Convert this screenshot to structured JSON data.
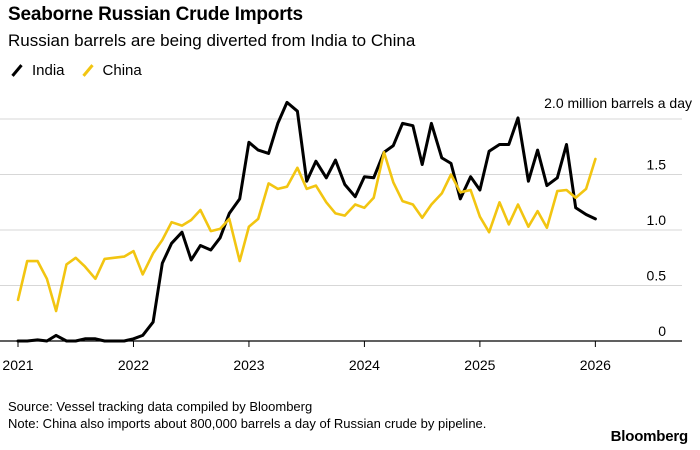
{
  "header": {
    "title": "Seaborne Russian Crude Imports",
    "subtitle": "Russian barrels are being diverted from India to China"
  },
  "footer": {
    "source": "Source: Vessel tracking data compiled by Bloomberg",
    "note": "Note: China also imports about 800,000 barrels a day of Russian crude by pipeline.",
    "brand": "Bloomberg"
  },
  "colors": {
    "india": "#000000",
    "china": "#f2c511",
    "grid": "#d7d7d7",
    "axis": "#000000"
  },
  "chart_data": {
    "type": "line",
    "title": "Seaborne Russian Crude Imports",
    "subtitle": "Russian barrels are being diverted from India to China",
    "units_label": "2.0 million barrels a day",
    "legend_position": "top-left",
    "grid": true,
    "xlim": [
      2021.0,
      2026.3
    ],
    "ylim": [
      0,
      2.0
    ],
    "x_ticks": [
      {
        "value": 2021,
        "label": "2021"
      },
      {
        "value": 2022,
        "label": "2022"
      },
      {
        "value": 2023,
        "label": "2023"
      },
      {
        "value": 2024,
        "label": "2024"
      },
      {
        "value": 2025,
        "label": "2025"
      },
      {
        "value": 2026,
        "label": "2026"
      }
    ],
    "y_ticks": [
      {
        "value": 0,
        "label": "0"
      },
      {
        "value": 0.5,
        "label": "0.5"
      },
      {
        "value": 1.0,
        "label": "1.0"
      },
      {
        "value": 1.5,
        "label": "1.5"
      },
      {
        "value": 2.0,
        "label": "2.0 million barrels a day"
      }
    ],
    "series": [
      {
        "name": "India",
        "color": "#000000",
        "x": [
          2021.0,
          2021.08,
          2021.17,
          2021.25,
          2021.33,
          2021.42,
          2021.5,
          2021.58,
          2021.67,
          2021.75,
          2021.83,
          2021.92,
          2022.0,
          2022.08,
          2022.17,
          2022.25,
          2022.33,
          2022.42,
          2022.5,
          2022.58,
          2022.67,
          2022.75,
          2022.83,
          2022.92,
          2023.0,
          2023.08,
          2023.17,
          2023.25,
          2023.33,
          2023.42,
          2023.5,
          2023.58,
          2023.67,
          2023.75,
          2023.83,
          2023.92,
          2024.0,
          2024.08,
          2024.17,
          2024.25,
          2024.33,
          2024.42,
          2024.5,
          2024.58,
          2024.67,
          2024.75,
          2024.83,
          2024.92,
          2025.0,
          2025.08,
          2025.17,
          2025.25,
          2025.33,
          2025.42,
          2025.5,
          2025.58,
          2025.67,
          2025.75,
          2025.83,
          2025.92,
          2026.0
        ],
        "values": [
          0.0,
          0.0,
          0.01,
          0.0,
          0.05,
          0.0,
          0.0,
          0.02,
          0.02,
          0.0,
          0.0,
          0.0,
          0.02,
          0.05,
          0.17,
          0.7,
          0.88,
          0.98,
          0.73,
          0.86,
          0.82,
          0.93,
          1.15,
          1.28,
          1.79,
          1.72,
          1.69,
          1.96,
          2.15,
          2.07,
          1.44,
          1.62,
          1.47,
          1.63,
          1.41,
          1.3,
          1.48,
          1.47,
          1.7,
          1.76,
          1.96,
          1.94,
          1.59,
          1.96,
          1.65,
          1.6,
          1.28,
          1.48,
          1.36,
          1.71,
          1.77,
          1.77,
          2.01,
          1.44,
          1.72,
          1.4,
          1.47,
          1.77,
          1.2,
          1.14,
          1.1
        ]
      },
      {
        "name": "China",
        "color": "#f2c511",
        "x": [
          2021.0,
          2021.08,
          2021.17,
          2021.25,
          2021.33,
          2021.42,
          2021.5,
          2021.58,
          2021.67,
          2021.75,
          2021.83,
          2021.92,
          2022.0,
          2022.08,
          2022.17,
          2022.25,
          2022.33,
          2022.42,
          2022.5,
          2022.58,
          2022.67,
          2022.75,
          2022.83,
          2022.92,
          2023.0,
          2023.08,
          2023.17,
          2023.25,
          2023.33,
          2023.42,
          2023.5,
          2023.58,
          2023.67,
          2023.75,
          2023.83,
          2023.92,
          2024.0,
          2024.08,
          2024.17,
          2024.25,
          2024.33,
          2024.42,
          2024.5,
          2024.58,
          2024.67,
          2024.75,
          2024.83,
          2024.92,
          2025.0,
          2025.08,
          2025.17,
          2025.25,
          2025.33,
          2025.42,
          2025.5,
          2025.58,
          2025.67,
          2025.75,
          2025.83,
          2025.92,
          2026.0
        ],
        "values": [
          0.37,
          0.72,
          0.72,
          0.56,
          0.27,
          0.69,
          0.75,
          0.67,
          0.56,
          0.74,
          0.75,
          0.76,
          0.81,
          0.6,
          0.79,
          0.91,
          1.07,
          1.04,
          1.09,
          1.18,
          0.99,
          1.01,
          1.1,
          0.72,
          1.03,
          1.1,
          1.42,
          1.37,
          1.39,
          1.56,
          1.37,
          1.4,
          1.25,
          1.15,
          1.13,
          1.23,
          1.2,
          1.29,
          1.7,
          1.43,
          1.26,
          1.23,
          1.11,
          1.23,
          1.33,
          1.5,
          1.34,
          1.36,
          1.12,
          0.98,
          1.25,
          1.05,
          1.23,
          1.03,
          1.17,
          1.02,
          1.35,
          1.36,
          1.29,
          1.37,
          1.64
        ]
      }
    ]
  }
}
